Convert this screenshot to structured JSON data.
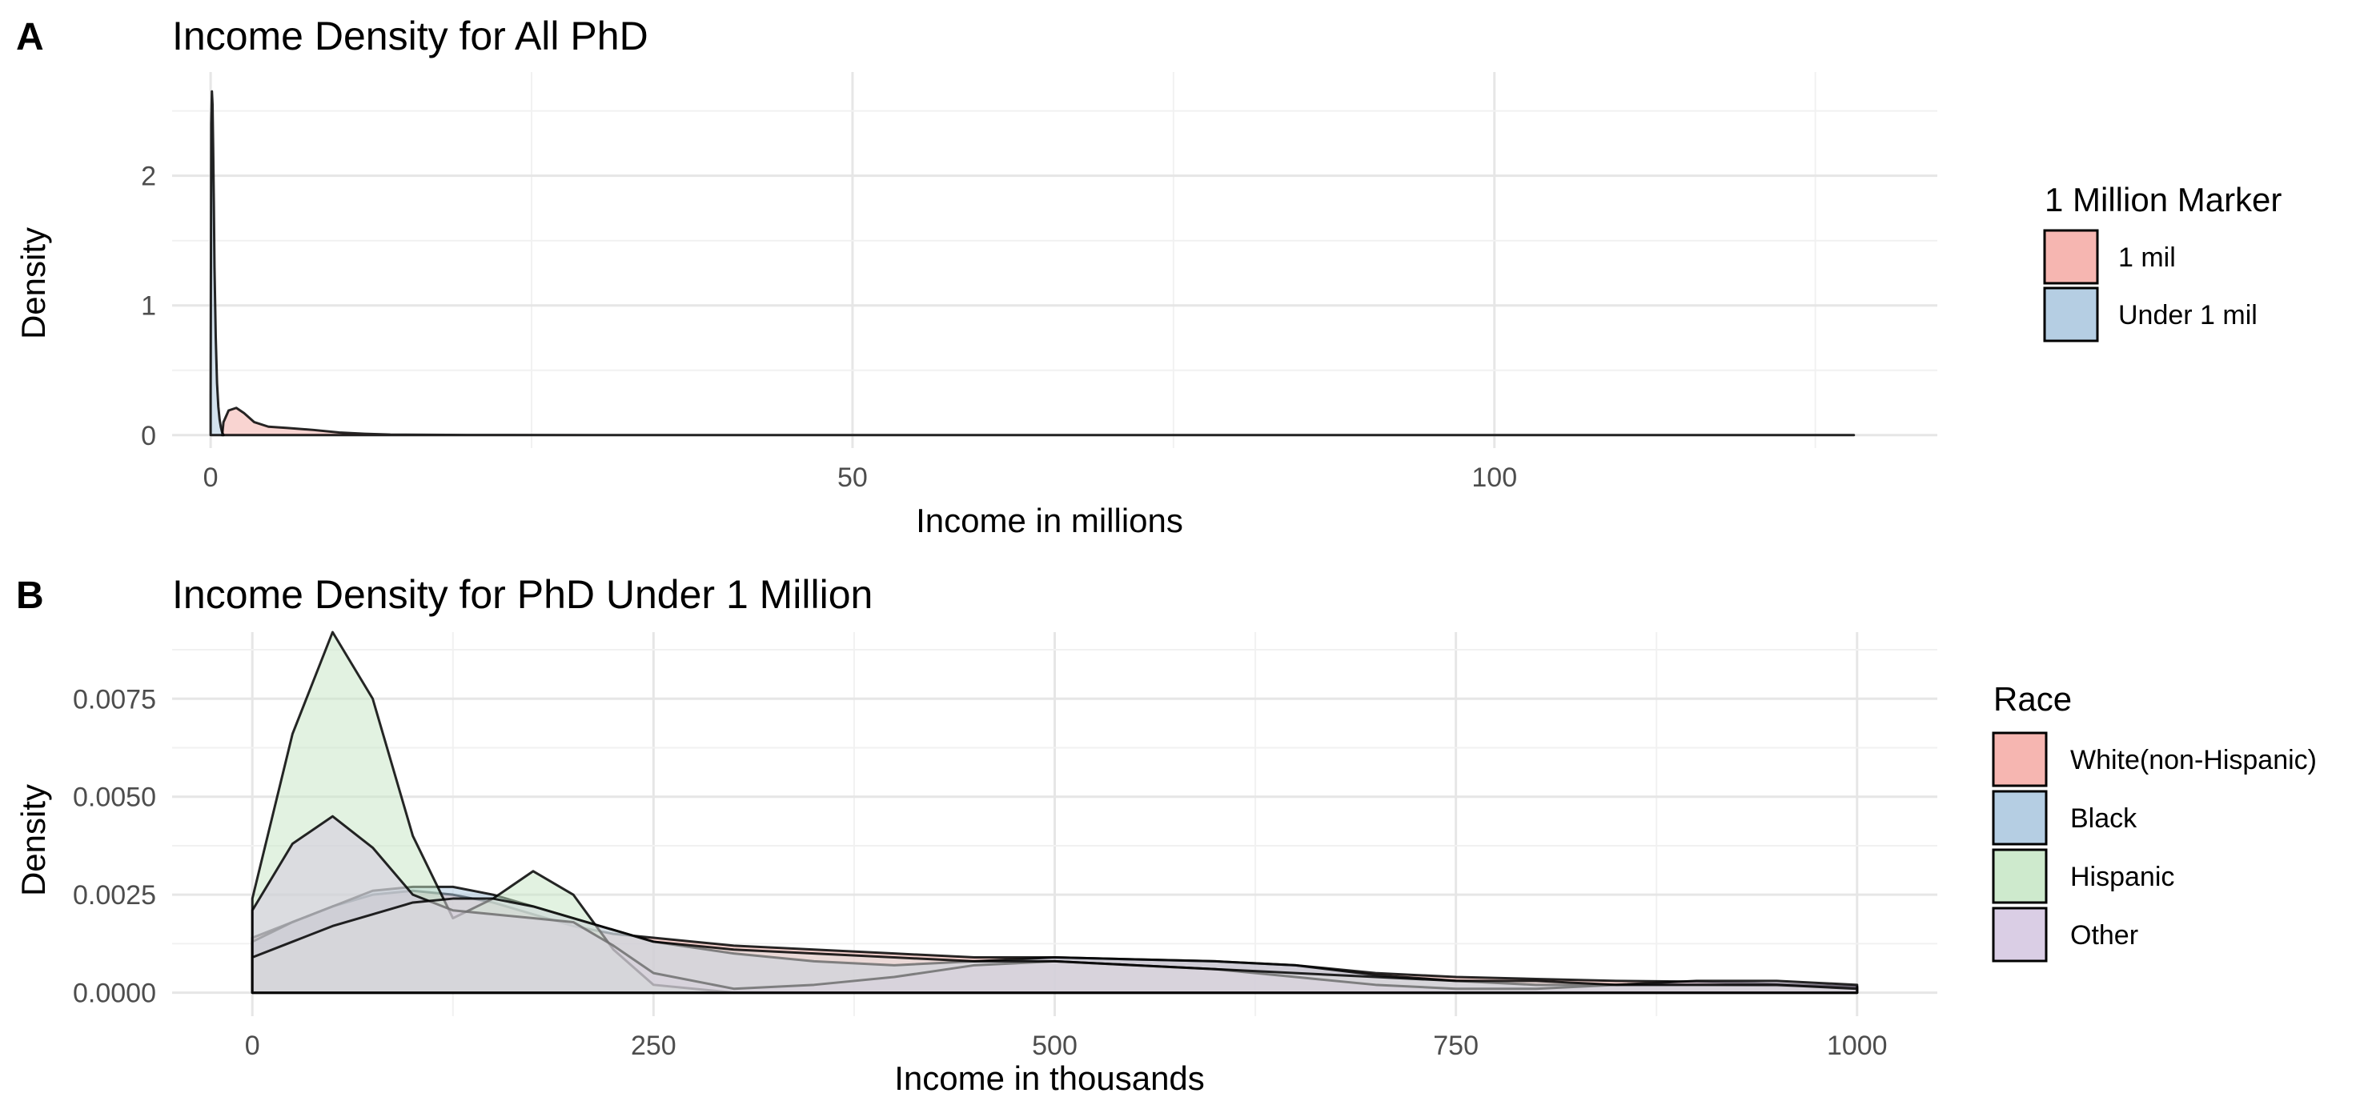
{
  "chart_data": [
    {
      "panel_tag": "A",
      "type": "area",
      "title": "Income Density for All PhD",
      "xlabel": "Income in millions",
      "ylabel": "Density",
      "xlim": [
        -3,
        134.5
      ],
      "ylim": [
        -0.1,
        2.8
      ],
      "xticks": [
        0,
        50,
        100
      ],
      "yticks": [
        0,
        1,
        2
      ],
      "grid": true,
      "legend": {
        "title": "1 Million Marker",
        "position": "right"
      },
      "series": [
        {
          "name": "1 mil",
          "color": "#F4A9A3",
          "x": [
            0.9,
            1.0,
            1.4,
            2.0,
            2.6,
            3.4,
            4.5,
            6.0,
            8.0,
            10.0,
            12.0,
            14.0,
            20.0,
            30.0,
            50.0,
            80.0,
            100.0,
            128.0
          ],
          "y": [
            0.0,
            0.1,
            0.19,
            0.21,
            0.17,
            0.1,
            0.065,
            0.055,
            0.04,
            0.02,
            0.01,
            0.004,
            0.001,
            0.0,
            0.0,
            0.0,
            0.0,
            0.0
          ]
        },
        {
          "name": "Under 1 mil",
          "color": "#A8C6DE",
          "x": [
            0.0,
            0.05,
            0.1,
            0.15,
            0.2,
            0.25,
            0.3,
            0.4,
            0.5,
            0.6,
            0.7,
            0.8,
            0.9,
            1.0
          ],
          "y": [
            0.3,
            2.4,
            2.65,
            2.55,
            2.2,
            1.8,
            1.3,
            0.75,
            0.4,
            0.22,
            0.12,
            0.06,
            0.02,
            0.0
          ]
        }
      ]
    },
    {
      "panel_tag": "B",
      "type": "area",
      "title": "Income Density for PhD Under 1 Million",
      "xlabel": "Income in thousands",
      "ylabel": "Density",
      "xlim": [
        -50,
        1050
      ],
      "ylim": [
        -0.0006,
        0.0092
      ],
      "xticks": [
        0,
        250,
        500,
        750,
        1000
      ],
      "ytick_labels": [
        "0.0000",
        "0.0025",
        "0.0050",
        "0.0075"
      ],
      "yticks": [
        0,
        0.0025,
        0.005,
        0.0075
      ],
      "grid": true,
      "legend": {
        "title": "Race",
        "position": "right"
      },
      "x": [
        0,
        25,
        50,
        75,
        100,
        125,
        150,
        175,
        200,
        225,
        250,
        300,
        350,
        400,
        450,
        500,
        550,
        600,
        650,
        700,
        750,
        800,
        850,
        900,
        950,
        1000
      ],
      "series": [
        {
          "name": "White(non-Hispanic)",
          "color": "#F4A9A3",
          "y": [
            0.0014,
            0.0018,
            0.0022,
            0.0025,
            0.0026,
            0.0025,
            0.0023,
            0.002,
            0.0017,
            0.0015,
            0.0014,
            0.0012,
            0.0011,
            0.001,
            0.0009,
            0.0009,
            0.00085,
            0.0008,
            0.0007,
            0.0005,
            0.0004,
            0.00035,
            0.0003,
            0.00028,
            0.00022,
            0.00015
          ]
        },
        {
          "name": "Black",
          "color": "#A8C6DE",
          "y": [
            0.0013,
            0.0018,
            0.0022,
            0.0026,
            0.0027,
            0.0027,
            0.0025,
            0.0022,
            0.0019,
            0.0016,
            0.0013,
            0.001,
            0.0008,
            0.0007,
            0.0008,
            0.0009,
            0.00085,
            0.0008,
            0.0007,
            0.00045,
            0.0003,
            0.0002,
            0.0002,
            0.0002,
            0.00018,
            0.00015
          ]
        },
        {
          "name": "Hispanic",
          "color": "#C6E6C4",
          "y": [
            0.0024,
            0.0066,
            0.0092,
            0.0075,
            0.004,
            0.0019,
            0.0024,
            0.0031,
            0.0025,
            0.0011,
            0.0002,
            0.0,
            0.0,
            0.0,
            0.0,
            0.0,
            0.0,
            0.0,
            0.0,
            0.0,
            0.0,
            0.0,
            0.0,
            0.0,
            0.0,
            0.0
          ]
        },
        {
          "name": "Other",
          "color": "#D4C6E0",
          "y": [
            0.0021,
            0.0038,
            0.0045,
            0.0037,
            0.0025,
            0.0021,
            0.002,
            0.0019,
            0.0018,
            0.0012,
            0.0005,
            0.0001,
            0.0002,
            0.0004,
            0.0007,
            0.0008,
            0.0007,
            0.0006,
            0.0004,
            0.0002,
            0.0001,
            0.0001,
            0.0002,
            0.0003,
            0.0003,
            0.0002
          ]
        },
        {
          "name": "",
          "color": "#DDDDDD",
          "y": [
            0.0009,
            0.0013,
            0.0017,
            0.002,
            0.0023,
            0.0024,
            0.0024,
            0.0022,
            0.0019,
            0.0016,
            0.0013,
            0.0011,
            0.001,
            0.0009,
            0.0008,
            0.0008,
            0.0007,
            0.0006,
            0.0005,
            0.0004,
            0.0003,
            0.0003,
            0.0002,
            0.0002,
            0.0002,
            0.0001
          ]
        }
      ]
    }
  ]
}
